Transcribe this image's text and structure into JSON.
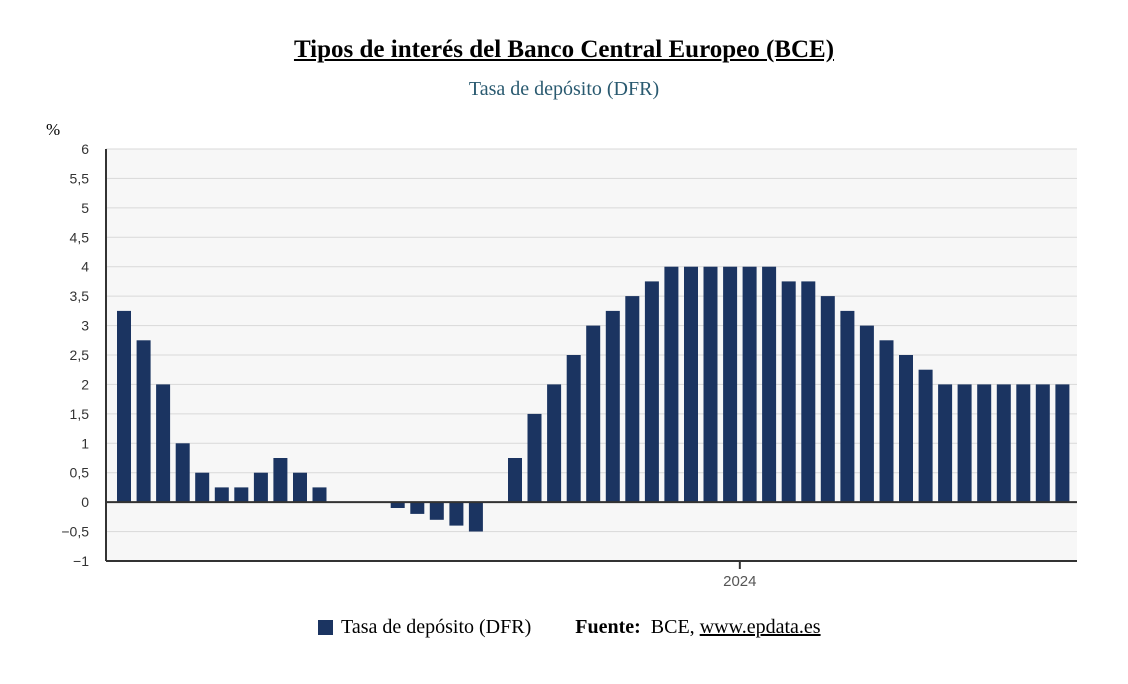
{
  "colors": {
    "bar": "#1b3461",
    "plot_bg": "#f7f7f7",
    "grid": "#d9d9d9",
    "axis": "#333333",
    "subtitle": "#2a5a70"
  },
  "chart_data": {
    "type": "bar",
    "title": "Tipos de interés del Banco Central Europeo (BCE)",
    "subtitle": "Tasa de depósito (DFR)",
    "ylabel": "%",
    "ylim": [
      -1,
      6
    ],
    "yticks": [
      "6",
      "5,5",
      "5",
      "4,5",
      "4",
      "3,5",
      "3",
      "2,5",
      "2",
      "1,5",
      "1",
      "0,5",
      "0",
      "−0,5",
      "−1"
    ],
    "ytick_values": [
      6,
      5.5,
      5,
      4.5,
      4,
      3.5,
      3,
      2.5,
      2,
      1.5,
      1,
      0.5,
      0,
      -0.5,
      -1
    ],
    "xticks": [
      {
        "label": "2024",
        "index": 31.5
      }
    ],
    "grid": true,
    "legend": "bottom",
    "series": [
      {
        "name": "Tasa de depósito (DFR)",
        "values": [
          3.25,
          2.75,
          2,
          1,
          0.5,
          0.25,
          0.25,
          0.5,
          0.75,
          0.5,
          0.25,
          0,
          0,
          0,
          -0.1,
          -0.2,
          -0.3,
          -0.4,
          -0.5,
          0,
          0.75,
          1.5,
          2,
          2.5,
          3,
          3.25,
          3.5,
          3.75,
          4,
          4,
          4,
          4,
          4,
          4,
          3.75,
          3.75,
          3.5,
          3.25,
          3,
          2.75,
          2.5,
          2.25,
          2,
          2,
          2,
          2,
          2,
          2,
          2
        ]
      }
    ]
  },
  "legend": {
    "series_label": "Tasa de depósito (DFR)"
  },
  "source": {
    "label": "Fuente:",
    "text": "BCE,",
    "url": "www.epdata.es"
  }
}
